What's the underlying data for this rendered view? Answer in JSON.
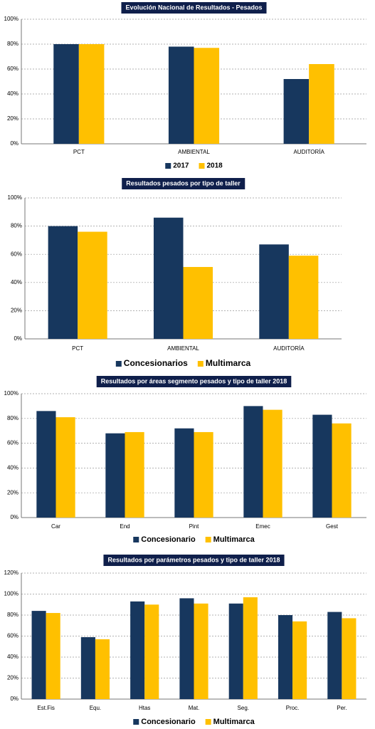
{
  "chart_data": [
    {
      "type": "bar",
      "title": "Evolución Nacional de Resultados - Pesados",
      "categories": [
        "PCT",
        "AMBIENTAL",
        "AUDITORÍA"
      ],
      "series": [
        {
          "name": "2017",
          "color": "#17375e",
          "values": [
            80,
            78,
            52
          ]
        },
        {
          "name": "2018",
          "color": "#ffc000",
          "values": [
            80,
            77,
            64
          ]
        }
      ],
      "ylim": [
        0,
        100
      ],
      "yticks": [
        {
          "value": 0,
          "label": "0%"
        },
        {
          "value": 20,
          "label": "20%"
        },
        {
          "value": 40,
          "label": "40%"
        },
        {
          "value": 60,
          "label": "60%"
        },
        {
          "value": 80,
          "label": "80%"
        },
        {
          "value": 100,
          "label": "100%"
        }
      ],
      "grid": true,
      "legend": "bottom"
    },
    {
      "type": "bar",
      "title": "Resultados pesados por tipo de taller",
      "categories": [
        "PCT",
        "AMBIENTAL",
        "AUDITORÍA"
      ],
      "series": [
        {
          "name": "Concesionarios",
          "color": "#17375e",
          "values": [
            80,
            86,
            67
          ]
        },
        {
          "name": "Multimarca",
          "color": "#ffc000",
          "values": [
            76,
            51,
            59
          ]
        }
      ],
      "ylim": [
        0,
        100
      ],
      "yticks": [
        {
          "value": 0,
          "label": "0%"
        },
        {
          "value": 20,
          "label": "20%"
        },
        {
          "value": 40,
          "label": "40%"
        },
        {
          "value": 60,
          "label": "60%"
        },
        {
          "value": 80,
          "label": "80%"
        },
        {
          "value": 100,
          "label": "100%"
        }
      ],
      "grid": true,
      "legend": "bottom"
    },
    {
      "type": "bar",
      "title": "Resultados por áreas segmento pesados y tipo de taller 2018",
      "categories": [
        "Car",
        "End",
        "Pint",
        "Emec",
        "Gest"
      ],
      "series": [
        {
          "name": "Concesionario",
          "color": "#17375e",
          "values": [
            86,
            68,
            72,
            90,
            83
          ]
        },
        {
          "name": "Multimarca",
          "color": "#ffc000",
          "values": [
            81,
            69,
            69,
            87,
            76
          ]
        }
      ],
      "ylim": [
        0,
        100
      ],
      "yticks": [
        {
          "value": 0,
          "label": "0%"
        },
        {
          "value": 20,
          "label": "20%"
        },
        {
          "value": 40,
          "label": "40%"
        },
        {
          "value": 60,
          "label": "60%"
        },
        {
          "value": 80,
          "label": "80%"
        },
        {
          "value": 100,
          "label": "100%"
        }
      ],
      "grid": true,
      "legend": "bottom"
    },
    {
      "type": "bar",
      "title": "Resultados por parámetros pesados y tipo de taller 2018",
      "categories": [
        "Est.Fis",
        "Equ.",
        "Htas",
        "Mat.",
        "Seg.",
        "Proc.",
        "Per."
      ],
      "series": [
        {
          "name": "Concesionario",
          "color": "#17375e",
          "values": [
            84,
            59,
            93,
            96,
            91,
            80,
            83
          ]
        },
        {
          "name": "Multimarca",
          "color": "#ffc000",
          "values": [
            82,
            57,
            90,
            91,
            97,
            74,
            77
          ]
        }
      ],
      "ylim": [
        0,
        120
      ],
      "yticks": [
        {
          "value": 0,
          "label": "0%"
        },
        {
          "value": 20,
          "label": "20%"
        },
        {
          "value": 40,
          "label": "40%"
        },
        {
          "value": 60,
          "label": "60%"
        },
        {
          "value": 80,
          "label": "80%"
        },
        {
          "value": 100,
          "label": "100%"
        },
        {
          "value": 120,
          "label": "120%"
        }
      ],
      "grid": true,
      "legend": "bottom"
    }
  ]
}
